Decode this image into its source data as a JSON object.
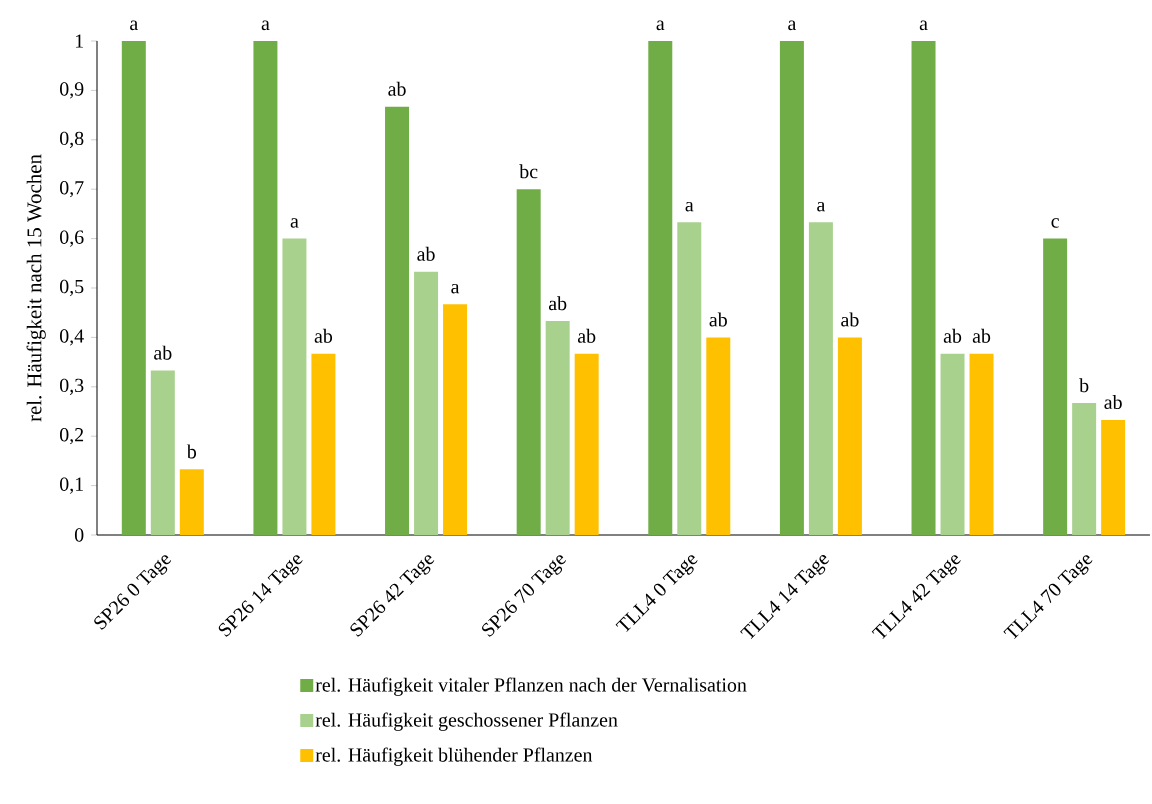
{
  "chart_data": {
    "type": "bar",
    "ylabel": "rel. Häufigkeit nach 15 Wochen",
    "categories": [
      "SP26 0 Tage",
      "SP26 14 Tage",
      "SP26 42 Tage",
      "SP26 70 Tage",
      "TLL4 0 Tage",
      "TLL4 14 Tage",
      "TLL4 42 Tage",
      "TLL4 70 Tage"
    ],
    "series": [
      {
        "name": "rel. Häufigkeit vitaler Pflanzen nach der Vernalisation",
        "color": "#70ad47",
        "values": [
          1,
          1,
          0.867,
          0.7,
          1,
          1,
          1,
          0.6
        ],
        "value_labels": [
          "a",
          "a",
          "ab",
          "bc",
          "a",
          "a",
          "a",
          "c"
        ]
      },
      {
        "name": "rel. Häufigkeit geschossener Pflanzen",
        "color": "#a9d18e",
        "values": [
          0.333,
          0.6,
          0.533,
          0.433,
          0.633,
          0.633,
          0.367,
          0.267
        ],
        "value_labels": [
          "ab",
          "a",
          "ab",
          "ab",
          "a",
          "a",
          "ab",
          "b"
        ]
      },
      {
        "name": "rel. Häufigkeit blühender Pflanzen",
        "color": "#ffc000",
        "values": [
          0.133,
          0.367,
          0.467,
          0.367,
          0.4,
          0.4,
          0.367,
          0.233
        ],
        "value_labels": [
          "b",
          "ab",
          "a",
          "ab",
          "ab",
          "ab",
          "ab",
          "ab"
        ]
      }
    ],
    "ylim": [
      0,
      1
    ],
    "yticks": [
      0,
      {
        "value": 0.1,
        "label": "0,1"
      },
      {
        "value": 0.2,
        "label": "0,2"
      },
      {
        "value": 0.3,
        "label": "0,3"
      },
      {
        "value": 0.4,
        "label": "0,4"
      },
      {
        "value": 0.5,
        "label": "0,5"
      },
      {
        "value": 0.6,
        "label": "0,6"
      },
      {
        "value": 0.7,
        "label": "0,7"
      },
      {
        "value": 0.8,
        "label": "0,8"
      },
      {
        "value": 0.9,
        "label": "0,9"
      },
      1
    ],
    "grid": false,
    "legend": "bottom"
  }
}
